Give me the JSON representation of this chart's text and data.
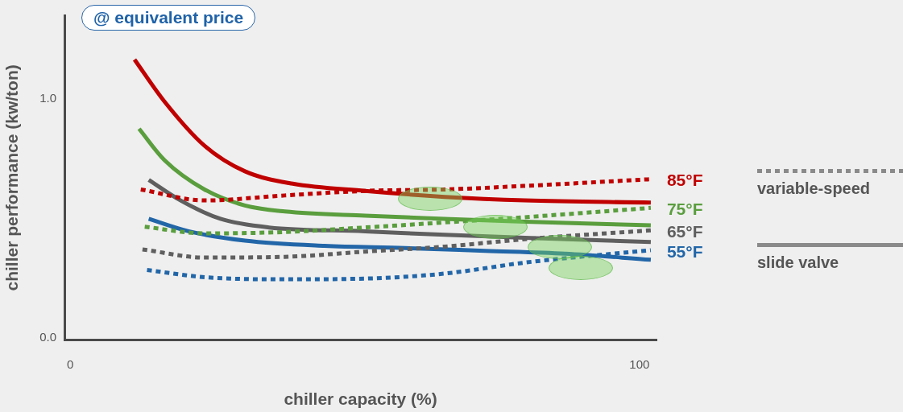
{
  "chart_data": {
    "type": "line",
    "title": "@ equivalent price",
    "xlabel": "chiller capacity (%)",
    "ylabel": "chiller performance (kw/ton)",
    "xlim": [
      -1,
      103
    ],
    "ylim": [
      -0.01,
      1.35
    ],
    "xticks": [
      0,
      100
    ],
    "yticks": [
      {
        "value": 0,
        "label": "0.0"
      },
      {
        "value": 1,
        "label": "1.0"
      }
    ],
    "grid": false,
    "legend": "right",
    "marker": "none",
    "annotations": [
      "variable-speed",
      "slide valve"
    ],
    "series": [
      {
        "color": "#c00000",
        "line_style": "solid",
        "x": [
          11.3,
          16.6,
          23.6,
          30.7,
          39.1,
          51.8,
          65.8,
          79.9,
          102
        ],
        "values": [
          1.165,
          0.988,
          0.804,
          0.697,
          0.645,
          0.615,
          0.59,
          0.575,
          0.566
        ]
      },
      {
        "name": "85°F",
        "color": "#c00000",
        "line_style": "dotted",
        "x": [
          12.4,
          23.6,
          37.7,
          51.8,
          65.8,
          79.9,
          102
        ],
        "values": [
          0.621,
          0.575,
          0.596,
          0.615,
          0.621,
          0.636,
          0.664
        ]
      },
      {
        "color": "#5a9e3e",
        "line_style": "solid",
        "x": [
          12.1,
          16.6,
          23.6,
          30.7,
          37.7,
          51.8,
          65.8,
          79.9,
          102
        ],
        "values": [
          0.875,
          0.743,
          0.621,
          0.554,
          0.529,
          0.511,
          0.498,
          0.486,
          0.471
        ]
      },
      {
        "name": "75°F",
        "color": "#5a9e3e",
        "line_style": "dotted",
        "x": [
          13.1,
          23.6,
          37.7,
          51.8,
          65.8,
          79.9,
          102
        ],
        "values": [
          0.465,
          0.437,
          0.443,
          0.462,
          0.483,
          0.505,
          0.544
        ]
      },
      {
        "color": "#5f5f5f",
        "line_style": "solid",
        "x": [
          13.8,
          19.4,
          26.4,
          34.9,
          51.8,
          65.8,
          79.9,
          102
        ],
        "values": [
          0.661,
          0.575,
          0.498,
          0.462,
          0.446,
          0.431,
          0.419,
          0.401
        ]
      },
      {
        "name": "65°F",
        "color": "#5f5f5f",
        "line_style": "dotted",
        "x": [
          12.7,
          23.6,
          37.7,
          51.8,
          65.8,
          79.9,
          102
        ],
        "values": [
          0.37,
          0.336,
          0.339,
          0.361,
          0.382,
          0.413,
          0.45
        ]
      },
      {
        "color": "#2266a8",
        "line_style": "solid",
        "x": [
          13.8,
          20.8,
          30.7,
          44.7,
          58.8,
          72.9,
          86.9,
          102
        ],
        "values": [
          0.498,
          0.446,
          0.407,
          0.385,
          0.376,
          0.364,
          0.352,
          0.327
        ]
      },
      {
        "name": "55°F",
        "color": "#2266a8",
        "line_style": "dotted",
        "x": [
          13.5,
          23.6,
          37.7,
          51.8,
          65.8,
          79.9,
          102
        ],
        "values": [
          0.284,
          0.254,
          0.245,
          0.248,
          0.269,
          0.315,
          0.367
        ]
      }
    ]
  }
}
